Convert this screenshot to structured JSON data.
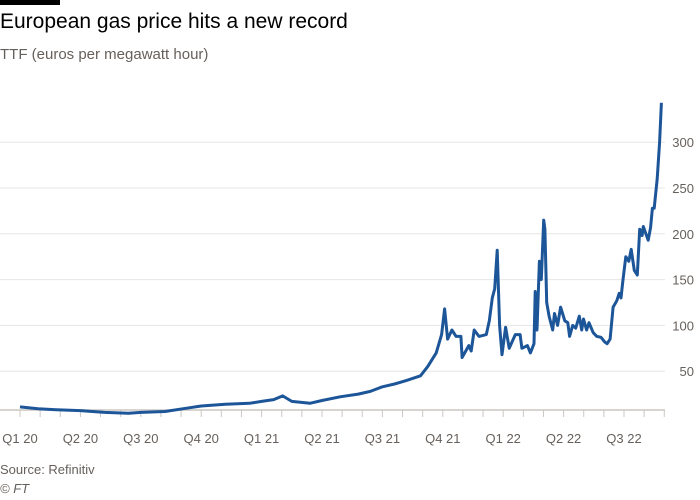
{
  "header": {
    "title": "European gas price hits a new record",
    "subtitle": "TTF (euros per megawatt hour)"
  },
  "footer": {
    "source": "Source: Refinitiv",
    "credit": "© FT"
  },
  "colors": {
    "line": "#1d5599",
    "grid": "#e8e5e2",
    "axis": "#ccc7c2"
  },
  "chart_data": {
    "type": "line",
    "title": "European gas price hits a new record",
    "subtitle": "TTF (euros per megawatt hour)",
    "xlabel": "",
    "ylabel": "euros per megawatt hour",
    "ylim": [
      0,
      350
    ],
    "yticks": [
      50,
      100,
      150,
      200,
      250,
      300
    ],
    "ytick_labels": [
      "50",
      "100",
      "150",
      "200",
      "250",
      "300"
    ],
    "xtick_labels": [
      "Q1 20",
      "Q2 20",
      "Q3 20",
      "Q4 20",
      "Q1 21",
      "Q2 21",
      "Q3 21",
      "Q4 21",
      "Q1 22",
      "Q2 22",
      "Q3 22"
    ],
    "x_unit": "quarters since Q1 2020",
    "grid": true,
    "series": [
      {
        "name": "TTF",
        "points": [
          [
            0,
            11
          ],
          [
            0.3,
            9
          ],
          [
            0.6,
            8
          ],
          [
            1.0,
            7
          ],
          [
            1.4,
            5
          ],
          [
            1.8,
            4
          ],
          [
            2.0,
            5
          ],
          [
            2.4,
            6
          ],
          [
            2.8,
            10
          ],
          [
            3.0,
            12
          ],
          [
            3.4,
            14
          ],
          [
            3.8,
            15
          ],
          [
            4.0,
            17
          ],
          [
            4.2,
            19
          ],
          [
            4.35,
            23
          ],
          [
            4.5,
            17
          ],
          [
            4.8,
            15
          ],
          [
            5.0,
            18
          ],
          [
            5.3,
            22
          ],
          [
            5.6,
            25
          ],
          [
            5.8,
            28
          ],
          [
            6.0,
            33
          ],
          [
            6.2,
            36
          ],
          [
            6.4,
            40
          ],
          [
            6.63,
            45
          ],
          [
            6.75,
            55
          ],
          [
            6.89,
            70
          ],
          [
            6.98,
            90
          ],
          [
            7.03,
            118
          ],
          [
            7.08,
            85
          ],
          [
            7.15,
            95
          ],
          [
            7.22,
            88
          ],
          [
            7.3,
            88
          ],
          [
            7.32,
            65
          ],
          [
            7.43,
            78
          ],
          [
            7.47,
            72
          ],
          [
            7.52,
            95
          ],
          [
            7.6,
            88
          ],
          [
            7.72,
            90
          ],
          [
            7.77,
            105
          ],
          [
            7.82,
            130
          ],
          [
            7.86,
            140
          ],
          [
            7.9,
            182
          ],
          [
            7.94,
            100
          ],
          [
            7.98,
            68
          ],
          [
            8.04,
            98
          ],
          [
            8.1,
            75
          ],
          [
            8.2,
            90
          ],
          [
            8.28,
            90
          ],
          [
            8.31,
            75
          ],
          [
            8.4,
            78
          ],
          [
            8.45,
            70
          ],
          [
            8.51,
            80
          ],
          [
            8.53,
            137
          ],
          [
            8.56,
            95
          ],
          [
            8.6,
            170
          ],
          [
            8.63,
            150
          ],
          [
            8.67,
            215
          ],
          [
            8.69,
            205
          ],
          [
            8.72,
            125
          ],
          [
            8.76,
            110
          ],
          [
            8.82,
            95
          ],
          [
            8.85,
            113
          ],
          [
            8.9,
            100
          ],
          [
            8.95,
            120
          ],
          [
            9.02,
            105
          ],
          [
            9.07,
            103
          ],
          [
            9.1,
            88
          ],
          [
            9.15,
            100
          ],
          [
            9.2,
            97
          ],
          [
            9.26,
            110
          ],
          [
            9.3,
            95
          ],
          [
            9.33,
            107
          ],
          [
            9.38,
            95
          ],
          [
            9.42,
            103
          ],
          [
            9.49,
            92
          ],
          [
            9.55,
            88
          ],
          [
            9.62,
            87
          ],
          [
            9.68,
            82
          ],
          [
            9.72,
            80
          ],
          [
            9.77,
            85
          ],
          [
            9.82,
            120
          ],
          [
            9.88,
            127
          ],
          [
            9.92,
            135
          ],
          [
            9.95,
            130
          ],
          [
            9.98,
            148
          ],
          [
            10.03,
            175
          ],
          [
            10.08,
            170
          ],
          [
            10.12,
            183
          ],
          [
            10.17,
            160
          ],
          [
            10.22,
            155
          ],
          [
            10.26,
            205
          ],
          [
            10.3,
            198
          ],
          [
            10.32,
            208
          ],
          [
            10.4,
            193
          ],
          [
            10.44,
            207
          ],
          [
            10.47,
            228
          ],
          [
            10.5,
            228
          ],
          [
            10.55,
            260
          ],
          [
            10.57,
            280
          ],
          [
            10.59,
            300
          ],
          [
            10.62,
            343
          ]
        ]
      }
    ]
  }
}
